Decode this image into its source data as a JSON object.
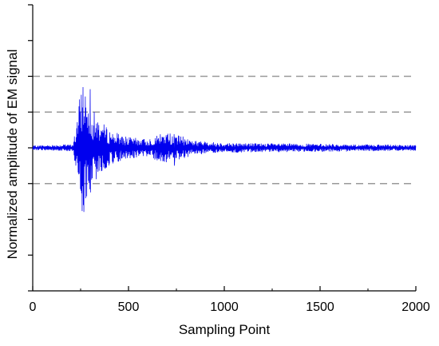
{
  "chart_data": {
    "type": "line",
    "title": "",
    "xlabel": "Sampling Point",
    "ylabel": "Normalized amplitude of EM signal",
    "xlim": [
      0,
      2000
    ],
    "ylim": [
      -2,
      2
    ],
    "x_ticks": [
      0,
      500,
      1000,
      1500,
      2000
    ],
    "x_tick_labels": [
      "0",
      "500",
      "1000",
      "1500",
      "2000"
    ],
    "y_tick_labels_shown": false,
    "grid": {
      "horizontal_dashed_at": [
        1.0,
        0.5,
        -0.5
      ]
    },
    "line_color": "#0000ee",
    "gridline_color": "#999999",
    "series": [
      {
        "envelope": [
          {
            "x": 0,
            "amp": 0.03
          },
          {
            "x": 80,
            "amp": 0.04
          },
          {
            "x": 210,
            "amp": 0.05
          },
          {
            "x": 235,
            "amp": 0.45
          },
          {
            "x": 255,
            "amp": 0.95
          },
          {
            "x": 265,
            "amp": 1.0
          },
          {
            "x": 290,
            "amp": 0.7
          },
          {
            "x": 330,
            "amp": 0.45
          },
          {
            "x": 400,
            "amp": 0.25
          },
          {
            "x": 500,
            "amp": 0.15
          },
          {
            "x": 600,
            "amp": 0.12
          },
          {
            "x": 650,
            "amp": 0.18
          },
          {
            "x": 700,
            "amp": 0.22
          },
          {
            "x": 760,
            "amp": 0.18
          },
          {
            "x": 850,
            "amp": 0.1
          },
          {
            "x": 1000,
            "amp": 0.07
          },
          {
            "x": 1500,
            "amp": 0.055
          },
          {
            "x": 2000,
            "amp": 0.04
          }
        ],
        "features": [
          {
            "x": 262,
            "y": 1.0
          },
          {
            "x": 280,
            "y": -0.85
          },
          {
            "x": 300,
            "y": 0.82
          },
          {
            "x": 700,
            "y": 0.22
          },
          {
            "x": 740,
            "y": -0.25
          }
        ]
      }
    ]
  }
}
